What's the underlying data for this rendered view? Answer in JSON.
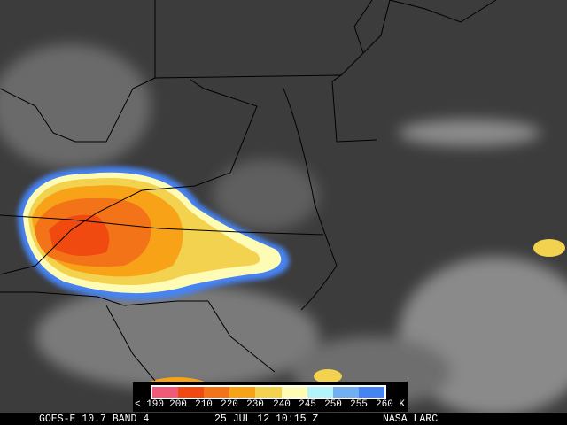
{
  "caption": {
    "satellite": "GOES-E 10.7 BAND 4",
    "datetime": "25 JUL 12 10:15 Z",
    "source": "NASA LARC"
  },
  "legend": {
    "unit": "K",
    "labels": [
      "< 190",
      "200",
      "210",
      "220",
      "230",
      "240",
      "245",
      "250",
      "255",
      "260 K"
    ],
    "colors": [
      "#f05a78",
      "#f04a10",
      "#f37418",
      "#f8a218",
      "#f2d24e",
      "#fefcb4",
      "#b2f4fa",
      "#72aef2",
      "#4684f4"
    ]
  },
  "colors": {
    "background_land": "#4a4a4a",
    "ocean": "#3a3a3a",
    "borders": "#000000"
  }
}
